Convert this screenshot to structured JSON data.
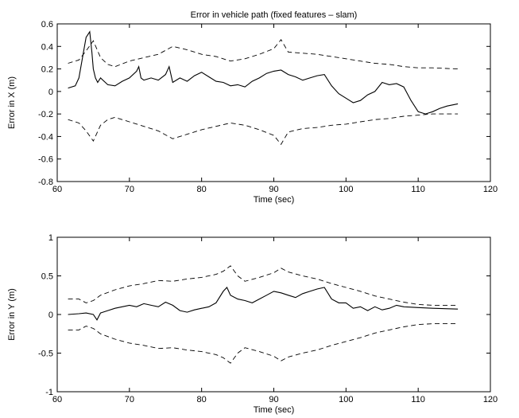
{
  "chart_data": [
    {
      "type": "line",
      "title": "Error in vehicle path (fixed features – slam)",
      "xlabel": "Time (sec)",
      "ylabel": "Error in X (m)",
      "xlim": [
        60,
        120
      ],
      "ylim": [
        -0.8,
        0.6
      ],
      "xticks": [
        "60",
        "70",
        "80",
        "90",
        "100",
        "110",
        "120"
      ],
      "yticks": [
        "-0.8",
        "-0.6",
        "-0.4",
        "-0.2",
        "0",
        "0.2",
        "0.4",
        "0.6"
      ],
      "grid": false,
      "series": [
        {
          "style": "solid",
          "x": [
            61.5,
            62.5,
            63.0,
            63.5,
            64.0,
            64.5,
            64.8,
            65.0,
            65.3,
            65.6,
            66.0,
            67.0,
            68.0,
            69.0,
            70.0,
            71.0,
            71.3,
            71.6,
            72.0,
            73.0,
            74.0,
            75.0,
            75.5,
            76.0,
            77.0,
            78.0,
            79.0,
            80.0,
            81.0,
            82.0,
            83.0,
            84.0,
            85.0,
            86.0,
            87.0,
            88.0,
            89.0,
            90.0,
            91.0,
            92.0,
            93.0,
            94.0,
            95.0,
            96.0,
            97.0,
            98.0,
            99.0,
            100.0,
            101.0,
            102.0,
            103.0,
            104.0,
            105.0,
            106.0,
            107.0,
            108.0,
            109.0,
            110.0,
            111.0,
            112.0,
            113.0,
            114.0,
            115.5
          ],
          "y": [
            0.03,
            0.05,
            0.12,
            0.3,
            0.48,
            0.53,
            0.35,
            0.2,
            0.12,
            0.08,
            0.12,
            0.06,
            0.05,
            0.09,
            0.12,
            0.18,
            0.22,
            0.12,
            0.1,
            0.12,
            0.1,
            0.15,
            0.22,
            0.08,
            0.12,
            0.09,
            0.14,
            0.17,
            0.13,
            0.09,
            0.08,
            0.05,
            0.06,
            0.04,
            0.09,
            0.12,
            0.16,
            0.18,
            0.19,
            0.15,
            0.13,
            0.1,
            0.12,
            0.14,
            0.15,
            0.05,
            -0.02,
            -0.06,
            -0.1,
            -0.08,
            -0.03,
            0.0,
            0.08,
            0.06,
            0.07,
            0.04,
            -0.08,
            -0.18,
            -0.2,
            -0.18,
            -0.15,
            -0.13,
            -0.11
          ]
        },
        {
          "style": "dashed",
          "x": [
            61.5,
            63.0,
            64.0,
            65.0,
            66.0,
            67.0,
            68.0,
            70.0,
            72.0,
            74.0,
            76.0,
            78.0,
            80.0,
            82.0,
            84.0,
            86.0,
            88.0,
            90.0,
            91.0,
            92.0,
            94.0,
            96.0,
            98.0,
            100.0,
            102.0,
            104.0,
            106.0,
            108.0,
            110.0,
            112.0,
            115.5
          ],
          "y": [
            0.25,
            0.28,
            0.36,
            0.45,
            0.3,
            0.24,
            0.22,
            0.27,
            0.3,
            0.33,
            0.4,
            0.37,
            0.33,
            0.31,
            0.27,
            0.29,
            0.33,
            0.38,
            0.46,
            0.35,
            0.34,
            0.33,
            0.31,
            0.29,
            0.27,
            0.25,
            0.24,
            0.22,
            0.21,
            0.21,
            0.2
          ]
        },
        {
          "style": "dashed",
          "x": [
            61.5,
            63.0,
            64.0,
            65.0,
            66.0,
            67.0,
            68.0,
            70.0,
            72.0,
            74.0,
            76.0,
            78.0,
            80.0,
            82.0,
            84.0,
            86.0,
            88.0,
            90.0,
            91.0,
            92.0,
            94.0,
            96.0,
            98.0,
            100.0,
            102.0,
            104.0,
            106.0,
            108.0,
            110.0,
            112.0,
            115.5
          ],
          "y": [
            -0.25,
            -0.28,
            -0.35,
            -0.44,
            -0.3,
            -0.25,
            -0.23,
            -0.27,
            -0.31,
            -0.35,
            -0.42,
            -0.38,
            -0.34,
            -0.31,
            -0.28,
            -0.3,
            -0.34,
            -0.39,
            -0.47,
            -0.36,
            -0.33,
            -0.32,
            -0.3,
            -0.29,
            -0.27,
            -0.25,
            -0.24,
            -0.22,
            -0.21,
            -0.2,
            -0.2
          ]
        }
      ]
    },
    {
      "type": "line",
      "title": "",
      "xlabel": "Time (sec)",
      "ylabel": "Error in Y (m)",
      "xlim": [
        60,
        120
      ],
      "ylim": [
        -1,
        1
      ],
      "xticks": [
        "60",
        "70",
        "80",
        "90",
        "100",
        "110",
        "120"
      ],
      "yticks": [
        "-1",
        "-0.5",
        "0",
        "0.5",
        "1"
      ],
      "grid": false,
      "series": [
        {
          "style": "solid",
          "x": [
            61.5,
            63.0,
            64.0,
            65.0,
            65.5,
            66.0,
            67.0,
            68.0,
            69.0,
            70.0,
            71.0,
            72.0,
            73.0,
            74.0,
            75.0,
            76.0,
            77.0,
            78.0,
            79.0,
            80.0,
            81.0,
            82.0,
            83.0,
            83.5,
            84.0,
            85.0,
            86.0,
            87.0,
            88.0,
            89.0,
            90.0,
            91.0,
            92.0,
            93.0,
            94.0,
            95.0,
            96.0,
            97.0,
            98.0,
            99.0,
            100.0,
            101.0,
            102.0,
            103.0,
            104.0,
            105.0,
            106.0,
            107.0,
            108.0,
            110.0,
            112.0,
            115.5
          ],
          "y": [
            0.0,
            0.01,
            0.02,
            0.0,
            -0.07,
            0.02,
            0.05,
            0.08,
            0.1,
            0.12,
            0.1,
            0.14,
            0.12,
            0.1,
            0.16,
            0.12,
            0.05,
            0.03,
            0.06,
            0.08,
            0.1,
            0.15,
            0.3,
            0.35,
            0.25,
            0.2,
            0.18,
            0.15,
            0.2,
            0.25,
            0.3,
            0.28,
            0.25,
            0.22,
            0.27,
            0.3,
            0.33,
            0.35,
            0.2,
            0.15,
            0.15,
            0.08,
            0.1,
            0.05,
            0.1,
            0.06,
            0.08,
            0.12,
            0.1,
            0.09,
            0.08,
            0.07
          ]
        },
        {
          "style": "dashed",
          "x": [
            61.5,
            63.0,
            64.0,
            65.0,
            66.0,
            68.0,
            70.0,
            72.0,
            74.0,
            76.0,
            78.0,
            80.0,
            82.0,
            83.0,
            84.0,
            85.0,
            86.0,
            88.0,
            90.0,
            91.0,
            92.0,
            94.0,
            96.0,
            98.0,
            100.0,
            102.0,
            104.0,
            106.0,
            108.0,
            110.0,
            112.0,
            115.5
          ],
          "y": [
            0.2,
            0.2,
            0.15,
            0.18,
            0.25,
            0.32,
            0.37,
            0.4,
            0.44,
            0.43,
            0.46,
            0.48,
            0.52,
            0.56,
            0.63,
            0.5,
            0.43,
            0.48,
            0.54,
            0.6,
            0.55,
            0.5,
            0.46,
            0.4,
            0.35,
            0.3,
            0.24,
            0.2,
            0.16,
            0.13,
            0.12,
            0.12
          ]
        },
        {
          "style": "dashed",
          "x": [
            61.5,
            63.0,
            64.0,
            65.0,
            66.0,
            68.0,
            70.0,
            72.0,
            74.0,
            76.0,
            78.0,
            80.0,
            82.0,
            83.0,
            84.0,
            85.0,
            86.0,
            88.0,
            90.0,
            91.0,
            92.0,
            94.0,
            96.0,
            98.0,
            100.0,
            102.0,
            104.0,
            106.0,
            108.0,
            110.0,
            112.0,
            115.5
          ],
          "y": [
            -0.2,
            -0.2,
            -0.15,
            -0.18,
            -0.25,
            -0.32,
            -0.37,
            -0.4,
            -0.44,
            -0.43,
            -0.46,
            -0.48,
            -0.52,
            -0.56,
            -0.63,
            -0.5,
            -0.43,
            -0.48,
            -0.54,
            -0.6,
            -0.55,
            -0.5,
            -0.46,
            -0.4,
            -0.35,
            -0.3,
            -0.24,
            -0.2,
            -0.16,
            -0.13,
            -0.12,
            -0.12
          ]
        }
      ]
    }
  ]
}
